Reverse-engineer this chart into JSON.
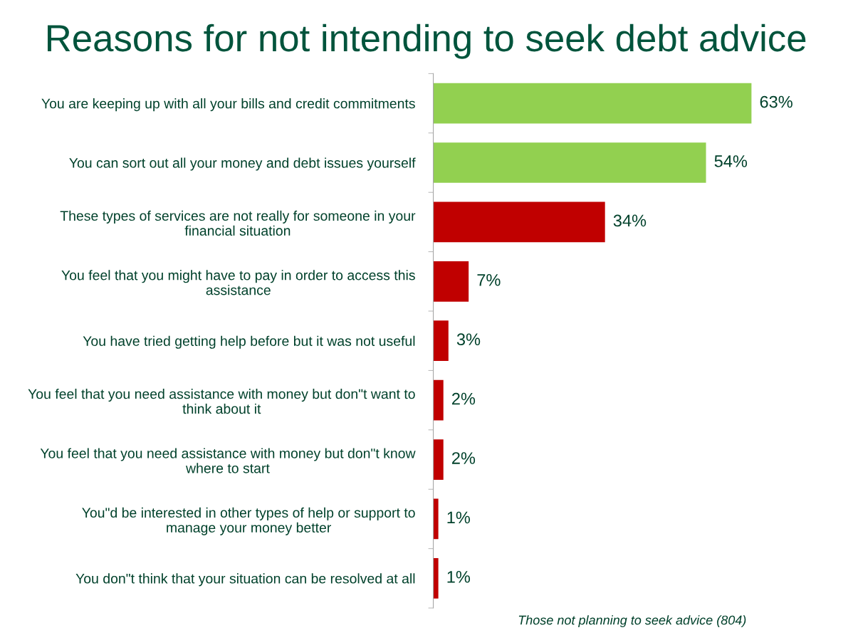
{
  "chart_data": {
    "type": "bar",
    "orientation": "horizontal",
    "title": "Reasons for not intending to seek debt advice",
    "categories": [
      "You are keeping up with all your bills and credit commitments",
      "You can sort out all your money and debt issues yourself",
      "These types of services are not really for someone in your financial situation",
      "You feel that you might have to pay in order to access this assistance",
      "You have tried getting help before but it was not useful",
      "You feel that you need assistance with money but don\"t want to think about it",
      "You feel that you need assistance with money but don\"t know where to start",
      "You\"d be interested in other types of help or support to manage your money better",
      "You don\"t think that your situation can be resolved at all"
    ],
    "values": [
      63,
      54,
      34,
      7,
      3,
      2,
      2,
      1,
      1
    ],
    "colors": [
      "#92d050",
      "#92d050",
      "#c00000",
      "#c00000",
      "#c00000",
      "#c00000",
      "#c00000",
      "#c00000",
      "#c00000"
    ],
    "value_labels": [
      "63%",
      "54%",
      "34%",
      "7%",
      "3%",
      "2%",
      "2%",
      "1%",
      "1%"
    ],
    "annotations": [
      "Those not planning to seek advice (804)"
    ],
    "grid": false,
    "legend": false
  }
}
